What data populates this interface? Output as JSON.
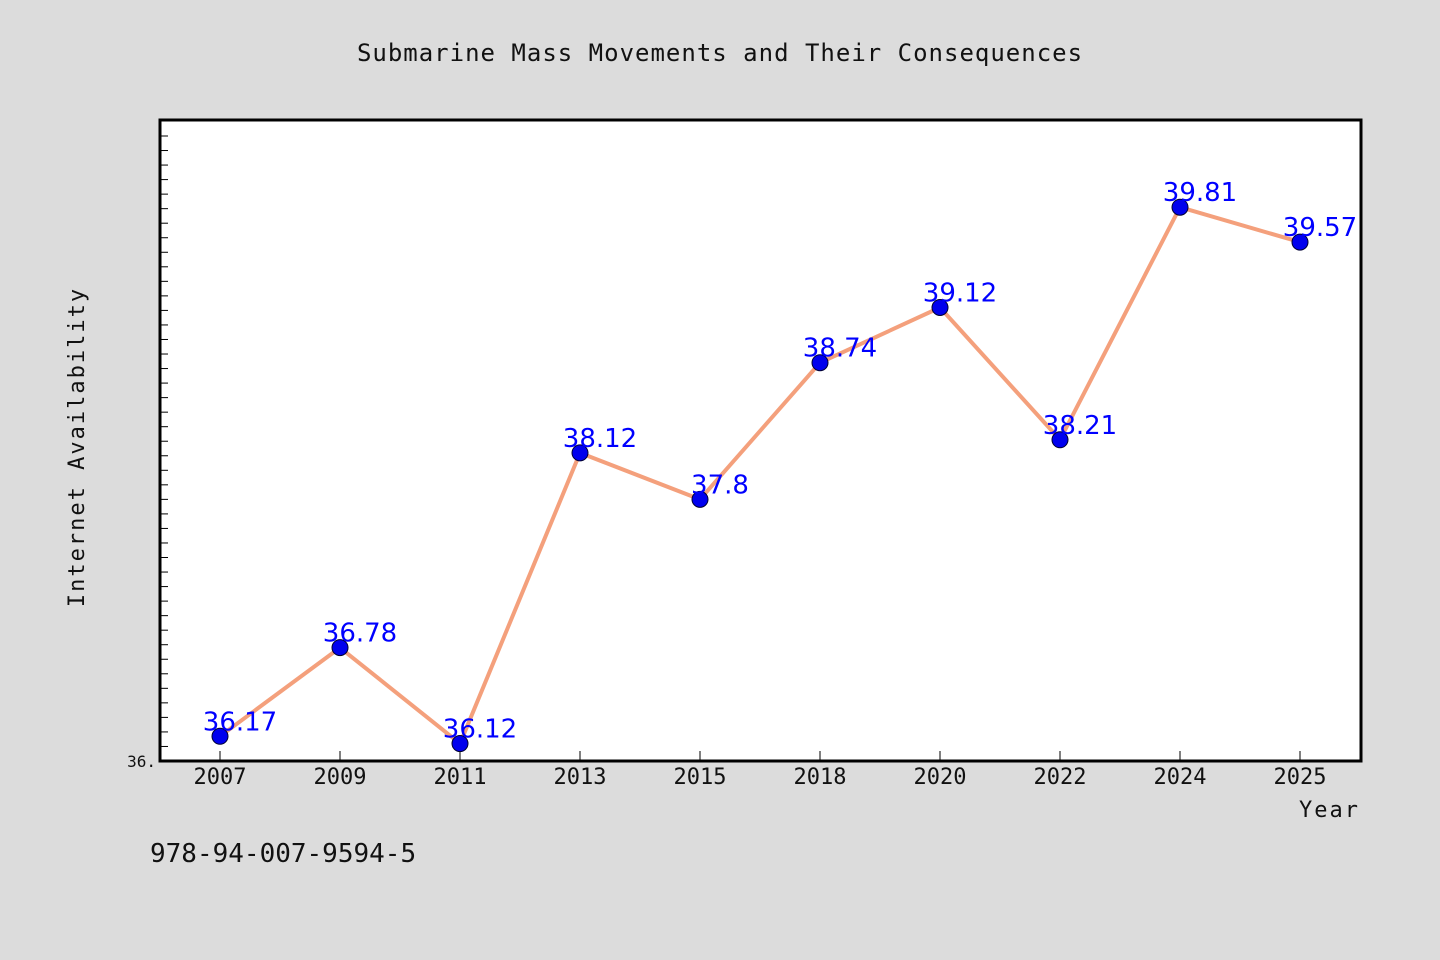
{
  "footnote": "978-94-007-9594-5",
  "colors": {
    "line": "#f4a07c",
    "marker": "#0000ee",
    "label": "#0000ff",
    "background": "#dcdcdc",
    "plot_background": "#ffffff"
  },
  "chart_data": {
    "type": "line",
    "title": "Submarine Mass Movements and Their Consequences",
    "xlabel": "Year",
    "ylabel": "Internet Availability",
    "categories": [
      "2007",
      "2009",
      "2011",
      "2013",
      "2015",
      "2018",
      "2020",
      "2022",
      "2024",
      "2025"
    ],
    "series": [
      {
        "values": [
          36.17,
          36.78,
          36.12,
          38.12,
          37.8,
          38.74,
          39.12,
          38.21,
          39.81,
          39.57
        ],
        "labels": [
          "36.17",
          "36.78",
          "36.12",
          "38.12",
          "37.8",
          "38.74",
          "39.12",
          "38.21",
          "39.81",
          "39.57"
        ]
      }
    ],
    "ylim": [
      36.0,
      40.41
    ],
    "yticks_labeled": [
      "36."
    ],
    "grid": false,
    "legend": "none"
  }
}
